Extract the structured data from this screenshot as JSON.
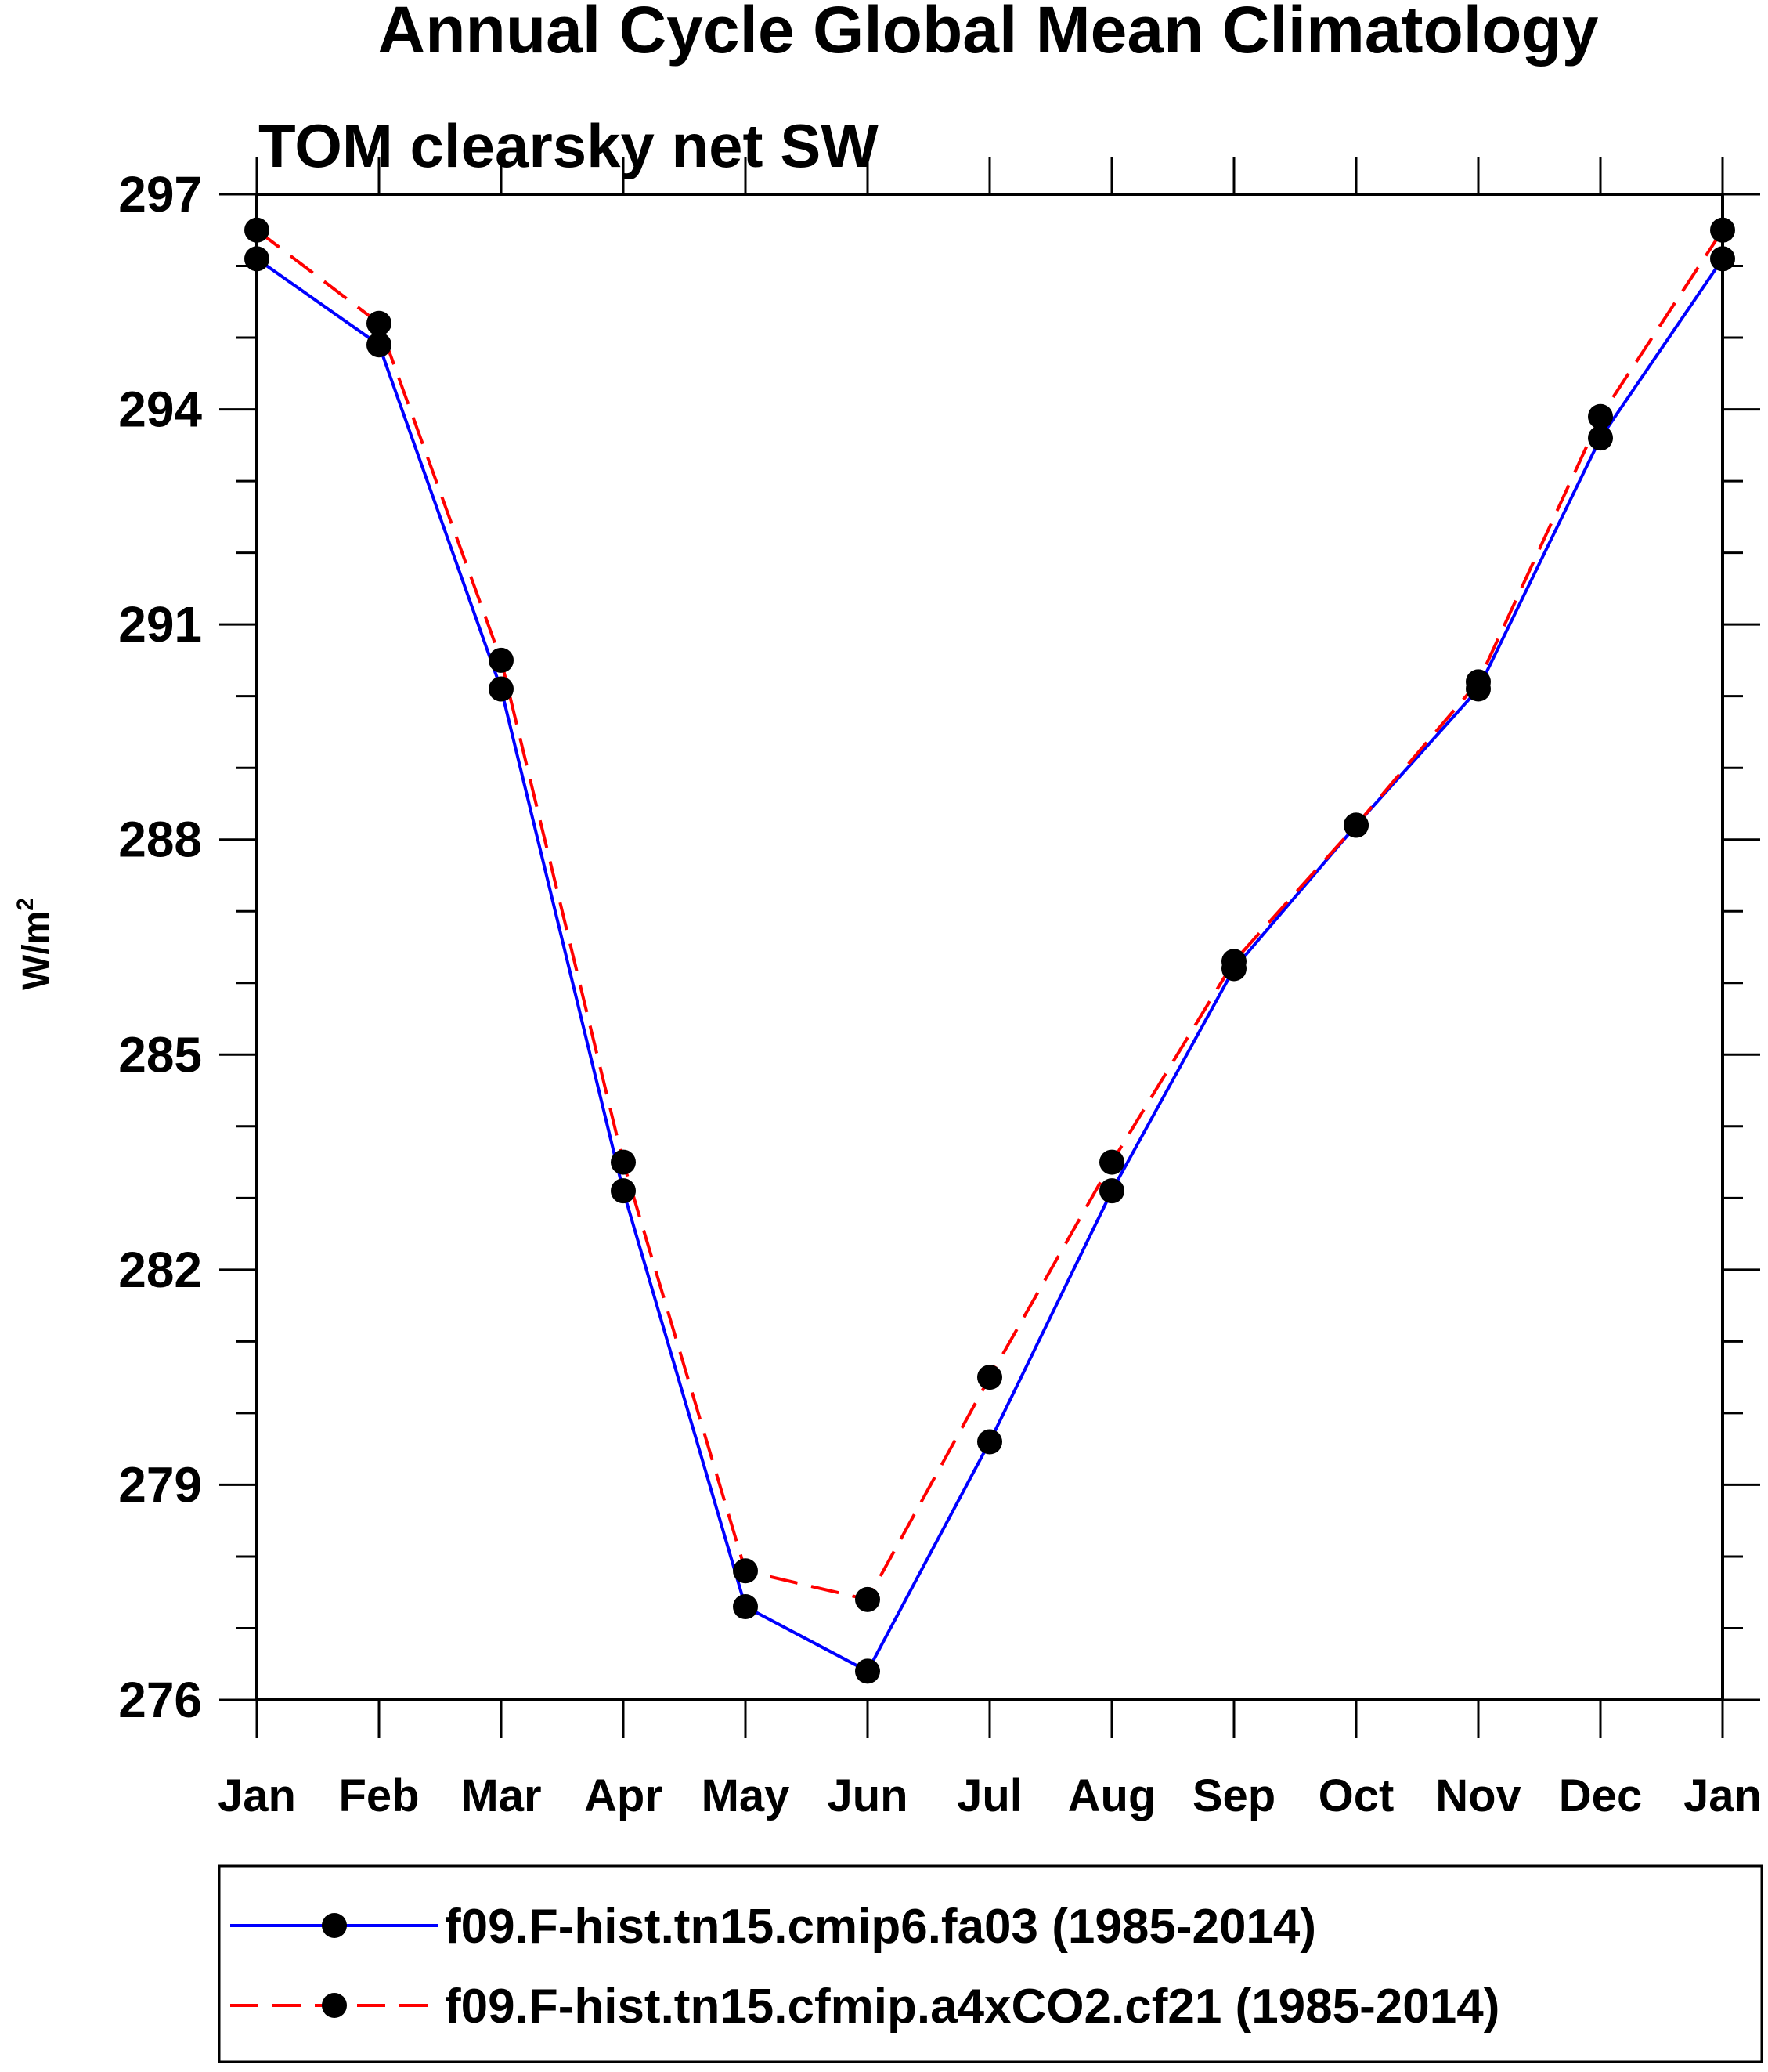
{
  "chart_data": {
    "type": "line",
    "title": "Annual Cycle Global Mean Climatology",
    "subtitle": "TOM clearsky net SW",
    "ylabel": "W/m",
    "ylabel_superscript": "2",
    "xlabel": "",
    "categories": [
      "Jan",
      "Feb",
      "Mar",
      "Apr",
      "May",
      "Jun",
      "Jul",
      "Aug",
      "Sep",
      "Oct",
      "Nov",
      "Dec",
      "Jan"
    ],
    "ylim": [
      276,
      297
    ],
    "yticks": [
      276,
      279,
      282,
      285,
      288,
      291,
      294,
      297
    ],
    "yticks_labels": [
      "276",
      "279",
      "282",
      "285",
      "288",
      "291",
      "294",
      "297"
    ],
    "series": [
      {
        "name": "f09.F-hist.tn15.cmip6.fa03 (1985-2014)",
        "color": "#0000ff",
        "dash": "solid",
        "values": [
          296.1,
          294.9,
          290.1,
          283.1,
          277.3,
          276.4,
          279.6,
          283.1,
          286.2,
          288.2,
          290.1,
          293.6,
          296.1
        ]
      },
      {
        "name": "f09.F-hist.tn15.cfmip.a4xCO2.cf21 (1985-2014)",
        "color": "#ff0000",
        "dash": "dashed",
        "values": [
          296.5,
          295.2,
          290.5,
          283.5,
          277.8,
          277.4,
          280.5,
          283.5,
          286.3,
          288.2,
          290.2,
          293.9,
          296.5
        ]
      }
    ],
    "legend_position": "bottom"
  }
}
